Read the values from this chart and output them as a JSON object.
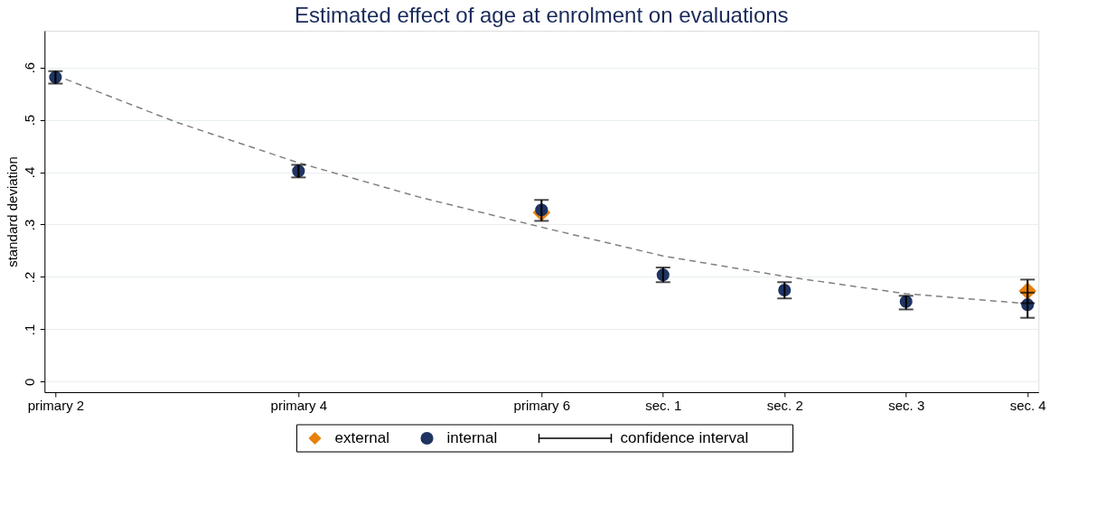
{
  "chart_data": {
    "type": "scatter",
    "title": "Estimated effect of age at enrolment on evaluations",
    "ylabel": "standard deviation",
    "categories": [
      "primary 2",
      null,
      "primary 4",
      null,
      "primary 6",
      "sec. 1",
      "sec. 2",
      "sec. 3",
      "sec. 4"
    ],
    "ylim": [
      -0.02,
      0.67
    ],
    "yticks": [
      {
        "value": 0,
        "label": "0"
      },
      {
        "value": 0.1,
        "label": ".1"
      },
      {
        "value": 0.2,
        "label": ".2"
      },
      {
        "value": 0.3,
        "label": ".3"
      },
      {
        "value": 0.4,
        "label": ".4"
      },
      {
        "value": 0.5,
        "label": ".5"
      },
      {
        "value": 0.6,
        "label": ".6"
      }
    ],
    "grid": "y",
    "legend": "bottom",
    "series": [
      {
        "type": "line",
        "color": "#808080",
        "line_style": "dashed",
        "values": [
          0.585,
          0.495,
          0.418,
          0.352,
          0.295,
          0.24,
          0.201,
          0.168,
          0.149
        ]
      },
      {
        "name": "external",
        "marker": "diamond",
        "color": "#e8800a",
        "values": [
          null,
          null,
          null,
          null,
          0.323,
          null,
          null,
          null,
          0.173
        ],
        "errors": [
          null,
          null,
          null,
          null,
          null,
          null,
          null,
          null,
          [
            0.15,
            0.195
          ]
        ]
      },
      {
        "name": "internal",
        "marker": "circle",
        "color": "#1f3461",
        "values": [
          0.581,
          null,
          0.402,
          null,
          0.328,
          0.204,
          0.175,
          0.153,
          0.147
        ],
        "errors": [
          0.012,
          null,
          0.012,
          null,
          [
            0.307,
            0.347
          ],
          [
            0.19,
            0.218
          ],
          [
            0.159,
            0.19
          ],
          [
            0.138,
            0.164
          ],
          [
            0.122,
            0.17
          ]
        ]
      }
    ],
    "annotations": [
      "confidence interval"
    ]
  }
}
